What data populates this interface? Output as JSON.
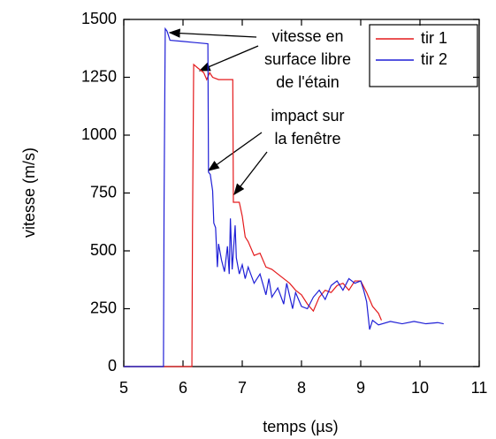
{
  "chart_data": {
    "type": "line",
    "xlabel": "temps (µs)",
    "ylabel": "vitesse (m/s)",
    "xlim": [
      5,
      11
    ],
    "xticks": [
      5,
      6,
      7,
      8,
      9,
      10,
      11
    ],
    "ylim": [
      0,
      1500
    ],
    "yticks": [
      0,
      250,
      500,
      750,
      1000,
      1250,
      1500
    ],
    "legend": "upper right",
    "annotations": [
      {
        "lines": [
          "vitesse en",
          "surface libre",
          "de l'étain"
        ]
      },
      {
        "lines": [
          "impact sur",
          "la fenêtre"
        ]
      }
    ],
    "series": [
      {
        "name": "tir 1",
        "color": "#e41a1c",
        "x": [
          5,
          6.15,
          6.16,
          6.18,
          6.25,
          6.35,
          6.4,
          6.45,
          6.5,
          6.6,
          6.84,
          6.85,
          6.95,
          7.0,
          7.05,
          7.1,
          7.2,
          7.3,
          7.4,
          7.5,
          7.6,
          7.7,
          7.8,
          7.9,
          8.0,
          8.1,
          8.2,
          8.3,
          8.4,
          8.5,
          8.6,
          8.7,
          8.8,
          8.9,
          9.0,
          9.1,
          9.2,
          9.3,
          9.35
        ],
        "values": [
          0,
          0,
          600,
          1305,
          1290,
          1270,
          1240,
          1270,
          1250,
          1240,
          1240,
          710,
          710,
          650,
          560,
          540,
          480,
          490,
          430,
          420,
          400,
          380,
          360,
          330,
          310,
          270,
          240,
          300,
          330,
          320,
          350,
          360,
          330,
          370,
          370,
          320,
          260,
          230,
          200
        ]
      },
      {
        "name": "tir 2",
        "color": "#1f1fd6",
        "x": [
          5,
          5.67,
          5.68,
          5.7,
          5.73,
          5.78,
          6.0,
          6.2,
          6.42,
          6.43,
          6.46,
          6.5,
          6.52,
          6.55,
          6.58,
          6.6,
          6.65,
          6.7,
          6.75,
          6.78,
          6.8,
          6.83,
          6.88,
          6.9,
          6.95,
          7.0,
          7.05,
          7.1,
          7.2,
          7.3,
          7.4,
          7.45,
          7.5,
          7.6,
          7.7,
          7.75,
          7.85,
          7.9,
          8.0,
          8.1,
          8.2,
          8.3,
          8.4,
          8.5,
          8.6,
          8.7,
          8.8,
          8.9,
          9.0,
          9.05,
          9.1,
          9.15,
          9.2,
          9.3,
          9.5,
          9.7,
          9.9,
          10.1,
          10.3,
          10.4
        ],
        "values": [
          0,
          0,
          700,
          1460,
          1450,
          1410,
          1405,
          1400,
          1395,
          840,
          830,
          760,
          620,
          600,
          430,
          530,
          460,
          410,
          520,
          400,
          640,
          420,
          610,
          470,
          400,
          440,
          380,
          430,
          360,
          400,
          310,
          380,
          300,
          340,
          270,
          360,
          250,
          320,
          260,
          250,
          300,
          330,
          290,
          350,
          370,
          330,
          380,
          360,
          370,
          330,
          280,
          160,
          200,
          180,
          195,
          185,
          195,
          185,
          190,
          185
        ]
      }
    ]
  }
}
